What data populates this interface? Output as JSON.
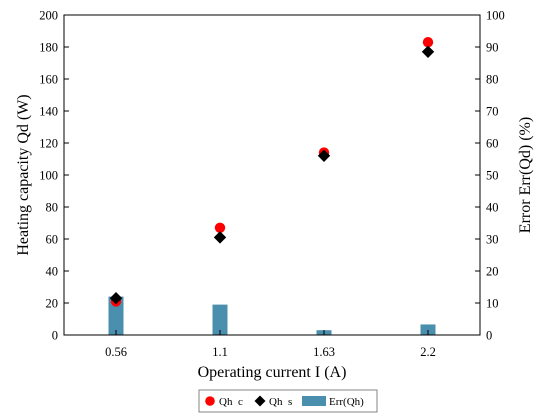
{
  "chart_data": {
    "type": "scatter+bar",
    "categories": [
      "0.56",
      "1.1",
      "1.63",
      "2.2"
    ],
    "xlabel": "Operating current I (A)",
    "ylabel_left": "Heating capacity Qd (W)",
    "ylabel_right": "Error Err(Qd) (%)",
    "ylim_left": [
      0,
      200
    ],
    "yticks_left": [
      0,
      20,
      40,
      60,
      80,
      100,
      120,
      140,
      160,
      180,
      200
    ],
    "ylim_right": [
      0,
      100
    ],
    "yticks_right": [
      0,
      10,
      20,
      30,
      40,
      50,
      60,
      70,
      80,
      90,
      100
    ],
    "grid": false,
    "legend_position": "bottom",
    "series": [
      {
        "name": "Qh  c",
        "kind": "scatter",
        "marker": "circle",
        "axis": "left",
        "color": "#ff0000",
        "values": [
          21,
          67,
          114,
          183
        ]
      },
      {
        "name": "Qh  s",
        "kind": "scatter",
        "marker": "diamond",
        "axis": "left",
        "color": "#000000",
        "values": [
          23,
          61,
          112,
          177
        ]
      },
      {
        "name": "Err(Qh)",
        "kind": "bar",
        "axis": "right",
        "color": "#4a8fad",
        "values": [
          12,
          9.5,
          1.5,
          3.3
        ]
      }
    ]
  }
}
